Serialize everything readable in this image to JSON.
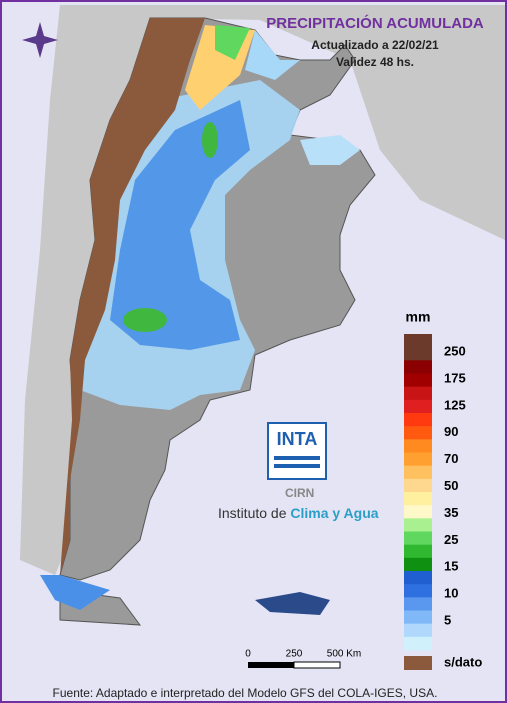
{
  "header": {
    "title": "PRECIPITACIÓN ACUMULADA",
    "updated": "Actualizado a 22/02/21",
    "validity": "Validez 48 hs."
  },
  "legend": {
    "unit": "mm",
    "labels": [
      250,
      175,
      125,
      90,
      70,
      50,
      35,
      25,
      15,
      10,
      5
    ],
    "no_data": "s/dato",
    "colors": [
      "#6b3a2a",
      "#6b3a2a",
      "#8b0000",
      "#a00000",
      "#c81414",
      "#e02020",
      "#ff3a10",
      "#ff5a10",
      "#ff8a20",
      "#ffa030",
      "#ffc060",
      "#ffd890",
      "#fff0a0",
      "#fff8c8",
      "#a8f090",
      "#60d860",
      "#30b830",
      "#109010",
      "#1f5fd0",
      "#2f70e0",
      "#5a98f0",
      "#80b8f8",
      "#b0d8fc",
      "#d0f0fc"
    ]
  },
  "logo": {
    "brand": "INTA",
    "center": "CIRN",
    "institute_prefix": "Instituto de ",
    "institute_name": "Clima y Agua"
  },
  "scale_bar": {
    "labels": [
      "0",
      "250",
      "500 Km"
    ]
  },
  "source": "Fuente: Adaptado e interpretado del Modelo GFS del COLA-IGES, USA."
}
